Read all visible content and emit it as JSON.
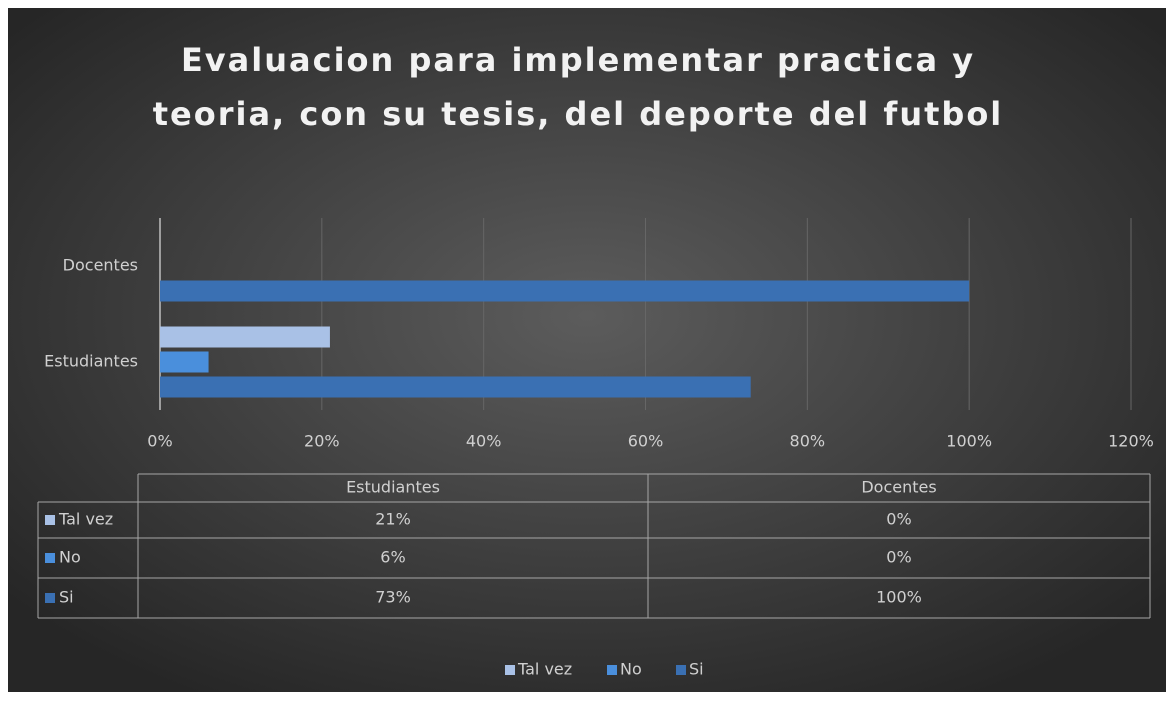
{
  "chart_data": {
    "type": "bar",
    "orientation": "horizontal",
    "title": [
      "Evaluacion para implementar practica y",
      "teoria, con su tesis, del deporte del futbol"
    ],
    "categories": [
      "Estudiantes",
      "Docentes"
    ],
    "series": [
      {
        "name": "Tal vez",
        "color": "#a9c1e6",
        "values": [
          21,
          0
        ],
        "value_labels": [
          "21%",
          "0%"
        ]
      },
      {
        "name": "No",
        "color": "#4a8fdc",
        "values": [
          6,
          0
        ],
        "value_labels": [
          "6%",
          "0%"
        ]
      },
      {
        "name": "Si",
        "color": "#3a70b3",
        "values": [
          73,
          100
        ],
        "value_labels": [
          "73%",
          "100%"
        ]
      }
    ],
    "xlim": [
      0,
      120
    ],
    "xticks": [
      {
        "value": 0,
        "label": "0%"
      },
      {
        "value": 20,
        "label": "20%"
      },
      {
        "value": 40,
        "label": "40%"
      },
      {
        "value": 60,
        "label": "60%"
      },
      {
        "value": 80,
        "label": "80%"
      },
      {
        "value": 100,
        "label": "100%"
      },
      {
        "value": 120,
        "label": "120%"
      }
    ],
    "grid": true,
    "legend": "bottom"
  }
}
